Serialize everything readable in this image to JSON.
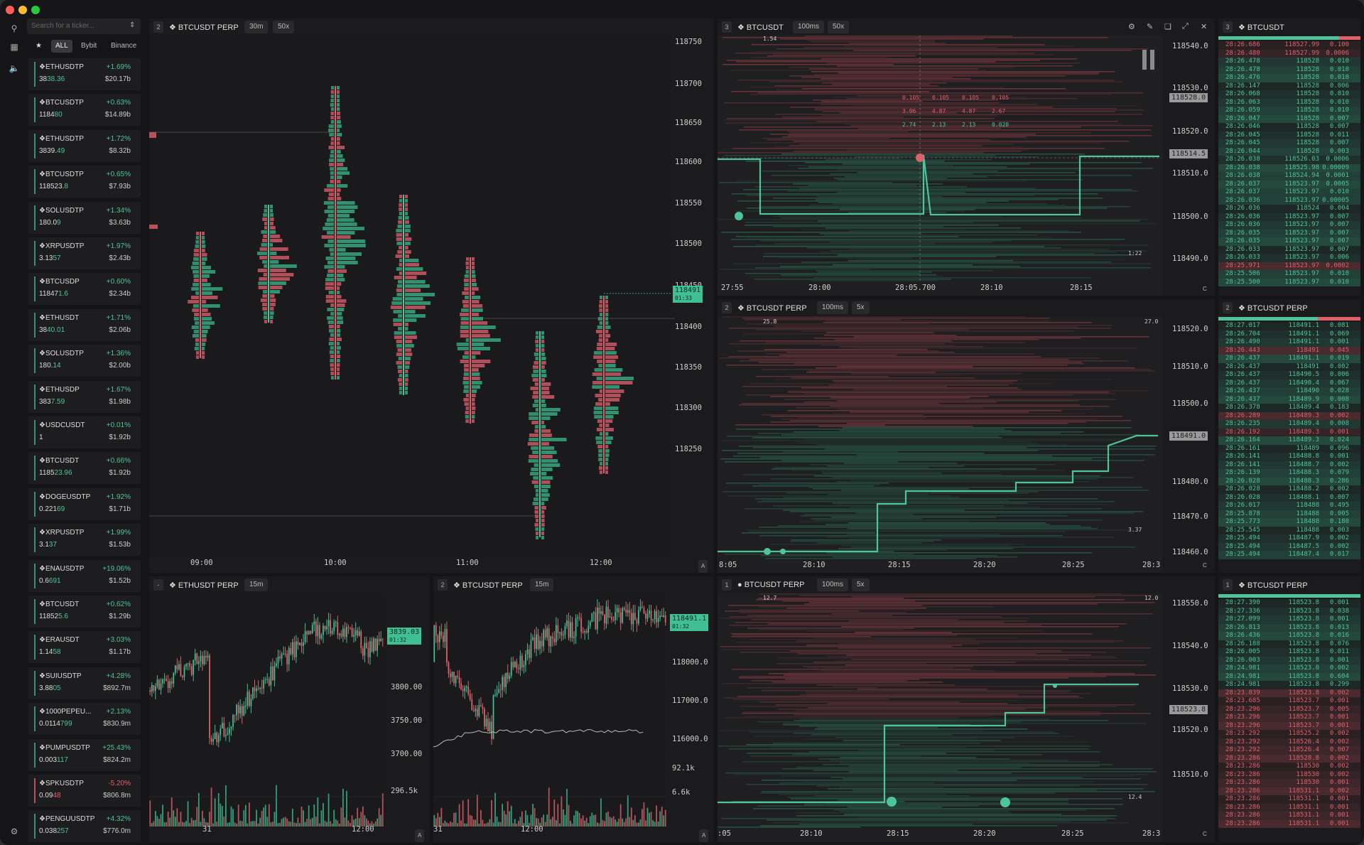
{
  "window": {
    "controls": [
      "close",
      "minimize",
      "zoom"
    ]
  },
  "search": {
    "placeholder": "Search for a ticker..."
  },
  "filters": [
    "ALL",
    "Bybit",
    "Binance"
  ],
  "tickers": [
    {
      "name": "ETHUSDTP",
      "change": "+1.69%",
      "price_a": "38",
      "price_b": "38.36",
      "vol": "$20.17b",
      "up": true
    },
    {
      "name": "BTCUSDTP",
      "change": "+0.63%",
      "price_a": "1184",
      "price_b": "80",
      "vol": "$14.89b",
      "up": true
    },
    {
      "name": "ETHUSDTP",
      "change": "+1.72%",
      "price_a": "3839.",
      "price_b": "49",
      "vol": "$8.32b",
      "up": true
    },
    {
      "name": "BTCUSDTP",
      "change": "+0.65%",
      "price_a": "118523.",
      "price_b": "8",
      "vol": "$7.93b",
      "up": true
    },
    {
      "name": "SOLUSDTP",
      "change": "+1.34%",
      "price_a": "180.0",
      "price_b": "9",
      "vol": "$3.63b",
      "up": true
    },
    {
      "name": "XRPUSDTP",
      "change": "+1.97%",
      "price_a": "3.13",
      "price_b": "57",
      "vol": "$2.43b",
      "up": true
    },
    {
      "name": "BTCUSDP",
      "change": "+0.60%",
      "price_a": "11847",
      "price_b": "1.6",
      "vol": "$2.34b",
      "up": true
    },
    {
      "name": "ETHUSDT",
      "change": "+1.71%",
      "price_a": "38",
      "price_b": "40.01",
      "vol": "$2.06b",
      "up": true
    },
    {
      "name": "SOLUSDTP",
      "change": "+1.36%",
      "price_a": "180.",
      "price_b": "14",
      "vol": "$2.00b",
      "up": true
    },
    {
      "name": "ETHUSDP",
      "change": "+1.67%",
      "price_a": "383",
      "price_b": "7.59",
      "vol": "$1.98b",
      "up": true
    },
    {
      "name": "USDCUSDT",
      "change": "+0.01%",
      "price_a": "1",
      "price_b": "",
      "vol": "$1.92b",
      "up": true
    },
    {
      "name": "BTCUSDT",
      "change": "+0.66%",
      "price_a": "1185",
      "price_b": "23.96",
      "vol": "$1.92b",
      "up": true
    },
    {
      "name": "DOGEUSDTP",
      "change": "+1.92%",
      "price_a": "0.221",
      "price_b": "69",
      "vol": "$1.71b",
      "up": true
    },
    {
      "name": "XRPUSDTP",
      "change": "+1.99%",
      "price_a": "3.1",
      "price_b": "37",
      "vol": "$1.53b",
      "up": true
    },
    {
      "name": "ENAUSDTP",
      "change": "+19.06%",
      "price_a": "0.6",
      "price_b": "691",
      "vol": "$1.52b",
      "up": true
    },
    {
      "name": "BTCUSDT",
      "change": "+0.62%",
      "price_a": "11852",
      "price_b": "5.6",
      "vol": "$1.29b",
      "up": true
    },
    {
      "name": "ERAUSDT",
      "change": "+3.03%",
      "price_a": "1.14",
      "price_b": "58",
      "vol": "$1.17b",
      "up": true
    },
    {
      "name": "SUIUSDTP",
      "change": "+4.28%",
      "price_a": "3.88",
      "price_b": "05",
      "vol": "$892.7m",
      "up": true
    },
    {
      "name": "1000PEPEU...",
      "change": "+2.13%",
      "price_a": "0.0114",
      "price_b": "799",
      "vol": "$830.9m",
      "up": true
    },
    {
      "name": "PUMPUSDTP",
      "change": "+25.43%",
      "price_a": "0.003",
      "price_b": "117",
      "vol": "$824.2m",
      "up": true
    },
    {
      "name": "SPKUSDTP",
      "change": "-5.20%",
      "price_a": "0.09",
      "price_b": "48",
      "vol": "$806.8m",
      "up": false
    },
    {
      "name": "PENGUUSDTP",
      "change": "+4.32%",
      "price_a": "0.038",
      "price_b": "257",
      "vol": "$776.0m",
      "up": true
    }
  ],
  "panes": {
    "footprint": {
      "num": "2",
      "title": "BTCUSDT PERP",
      "tf": "30m",
      "zoom": "50x",
      "yticks": [
        "118750",
        "118700",
        "118650",
        "118600",
        "118550",
        "118500",
        "118450",
        "118400",
        "118350",
        "118300",
        "118250"
      ],
      "xticks": [
        "09:00",
        "10:00",
        "11:00",
        "12:00"
      ],
      "last": "118491",
      "countdown": "01:33",
      "corner": "A"
    },
    "hm1": {
      "num": "3",
      "title": "BTCUSDT",
      "tf": "100ms",
      "zoom": "50x",
      "yticks": [
        "118540.0",
        "118530.0",
        "118520.0",
        "118510.0",
        "118500.0",
        "118490.0"
      ],
      "xticks": [
        "27:55",
        "28:00",
        "28:05.700",
        "28:10",
        "28:15"
      ],
      "crosshair_price": "118528.0",
      "last": "118514.5",
      "max_label": "1.54",
      "min_label": "1:22",
      "corner": "C",
      "tooltip": [
        [
          "0.105",
          "0.105",
          "0.105",
          "0.105"
        ],
        [
          "3.96",
          "4.87",
          "4.87",
          "2.67"
        ],
        [
          "2.74",
          "2.13",
          "2.13",
          "0.020"
        ]
      ]
    },
    "hm2": {
      "num": "2",
      "title": "BTCUSDT PERP",
      "tf": "100ms",
      "zoom": "5x",
      "yticks": [
        "118520.0",
        "118510.0",
        "118500.0",
        "118491.0",
        "118480.0",
        "118470.0",
        "118460.0"
      ],
      "xticks": [
        "8:05",
        "28:10",
        "28:15",
        "28:20",
        "28:25",
        "28:3"
      ],
      "top_left": "25.8",
      "top_right": "27.0",
      "right_mid": "3.37",
      "corner": "C"
    },
    "hm3": {
      "num": "1",
      "title": "BTCUSDT PERP",
      "tf": "100ms",
      "zoom": "5x",
      "yticks": [
        "118550.0",
        "118540.0",
        "118530.0",
        "118523.8",
        "118520.0",
        "118510.0"
      ],
      "xticks": [
        ":05",
        "28:10",
        "28:15",
        "28:20",
        "28:25",
        "28:3"
      ],
      "top_left": "12.7",
      "top_right": "12.0",
      "right_low": "12.4",
      "corner": "C"
    },
    "eth": {
      "num": "-",
      "title": "ETHUSDT PERP",
      "tf": "15m",
      "yticks": [
        "3800.00",
        "3750.00",
        "3700.00"
      ],
      "xticks": [
        "31",
        "12:00"
      ],
      "last": "3839.03",
      "countdown": "01:32",
      "vol_label": "296.5k",
      "corner": "A"
    },
    "btc15": {
      "num": "2",
      "title": "BTCUSDT PERP",
      "tf": "15m",
      "yticks": [
        "119000.0",
        "118000.0",
        "117000.0",
        "116000.0"
      ],
      "xticks": [
        "31",
        "12:00"
      ],
      "last": "118491.1",
      "countdown": "01:32",
      "oi_label": "92.1k",
      "vol_label": "6.6k",
      "corner": "A"
    }
  },
  "trades1": {
    "num": "3",
    "title": "BTCUSDT",
    "rows": [
      [
        "28:26.686",
        "118527.99",
        "0.100",
        "s"
      ],
      [
        "28:26.480",
        "118527.99",
        "0.0006",
        "s"
      ],
      [
        "28:26.478",
        "118528",
        "0.010",
        "b"
      ],
      [
        "28:26.478",
        "118528",
        "0.010",
        "b"
      ],
      [
        "28:26.476",
        "118528",
        "0.010",
        "b"
      ],
      [
        "28:26.147",
        "118528",
        "0.006",
        "b"
      ],
      [
        "28:26.068",
        "118528",
        "0.010",
        "b"
      ],
      [
        "28:26.063",
        "118528",
        "0.010",
        "b"
      ],
      [
        "28:26.059",
        "118528",
        "0.010",
        "b"
      ],
      [
        "28:26.047",
        "118528",
        "0.007",
        "b"
      ],
      [
        "28:26.046",
        "118528",
        "0.007",
        "b"
      ],
      [
        "28:26.045",
        "118528",
        "0.011",
        "b"
      ],
      [
        "28:26.045",
        "118528",
        "0.007",
        "b"
      ],
      [
        "28:26.044",
        "118528",
        "0.003",
        "b"
      ],
      [
        "28:26.038",
        "118526.03",
        "0.0006",
        "b"
      ],
      [
        "28:26.038",
        "118525.98",
        "0.00009",
        "b"
      ],
      [
        "28:26.038",
        "118524.94",
        "0.0001",
        "b"
      ],
      [
        "28:26.037",
        "118523.97",
        "0.0005",
        "b"
      ],
      [
        "28:26.037",
        "118523.97",
        "0.010",
        "b"
      ],
      [
        "28:26.036",
        "118523.97",
        "0.00005",
        "b"
      ],
      [
        "28:26.036",
        "118524",
        "0.004",
        "b"
      ],
      [
        "28:26.036",
        "118523.97",
        "0.007",
        "b"
      ],
      [
        "28:26.036",
        "118523.97",
        "0.007",
        "b"
      ],
      [
        "28:26.035",
        "118523.97",
        "0.007",
        "b"
      ],
      [
        "28:26.035",
        "118523.97",
        "0.007",
        "b"
      ],
      [
        "28:26.033",
        "118523.97",
        "0.007",
        "b"
      ],
      [
        "28:26.033",
        "118523.97",
        "0.006",
        "b"
      ],
      [
        "28:25.971",
        "118523.97",
        "0.0002",
        "s"
      ],
      [
        "28:25.506",
        "118523.97",
        "0.010",
        "b"
      ],
      [
        "28:25.500",
        "118523.97",
        "0.010",
        "b"
      ]
    ]
  },
  "trades2": {
    "num": "2",
    "title": "BTCUSDT PERP",
    "rows": [
      [
        "28:27.017",
        "118491.1",
        "0.081",
        "b"
      ],
      [
        "28:26.704",
        "118491.1",
        "0.069",
        "b"
      ],
      [
        "28:26.490",
        "118491.1",
        "0.001",
        "b"
      ],
      [
        "28:26.443",
        "118491",
        "0.045",
        "s"
      ],
      [
        "28:26.437",
        "118491.1",
        "0.019",
        "b"
      ],
      [
        "28:26.437",
        "118491",
        "0.002",
        "b"
      ],
      [
        "28:26.437",
        "118490.5",
        "0.006",
        "b"
      ],
      [
        "28:26.437",
        "118490.4",
        "0.067",
        "b"
      ],
      [
        "28:26.437",
        "118490",
        "0.028",
        "b"
      ],
      [
        "28:26.437",
        "118489.9",
        "0.008",
        "b"
      ],
      [
        "28:26.378",
        "118489.4",
        "0.183",
        "b"
      ],
      [
        "28:26.289",
        "118489.3",
        "0.002",
        "s"
      ],
      [
        "28:26.235",
        "118489.4",
        "0.008",
        "b"
      ],
      [
        "28:26.192",
        "118489.3",
        "0.001",
        "s"
      ],
      [
        "28:26.164",
        "118489.3",
        "0.024",
        "b"
      ],
      [
        "28:26.161",
        "118489",
        "0.096",
        "b"
      ],
      [
        "28:26.141",
        "118488.8",
        "0.001",
        "b"
      ],
      [
        "28:26.141",
        "118488.7",
        "0.002",
        "b"
      ],
      [
        "28:26.139",
        "118488.3",
        "0.079",
        "b"
      ],
      [
        "28:26.028",
        "118488.3",
        "0.286",
        "b"
      ],
      [
        "28:26.028",
        "118488.2",
        "0.002",
        "b"
      ],
      [
        "28:26.028",
        "118488.1",
        "0.007",
        "b"
      ],
      [
        "28:26.017",
        "118488",
        "0.495",
        "b"
      ],
      [
        "28:25.878",
        "118488",
        "0.005",
        "b"
      ],
      [
        "28:25.773",
        "118488",
        "0.180",
        "b"
      ],
      [
        "28:25.545",
        "118488",
        "0.003",
        "b"
      ],
      [
        "28:25.494",
        "118487.9",
        "0.002",
        "b"
      ],
      [
        "28:25.494",
        "118487.5",
        "0.002",
        "b"
      ],
      [
        "28:25.494",
        "118487.4",
        "0.017",
        "b"
      ]
    ]
  },
  "trades3": {
    "num": "1",
    "title": "BTCUSDT PERP",
    "rows": [
      [
        "28:27.390",
        "118523.8",
        "0.001",
        "b"
      ],
      [
        "28:27.336",
        "118523.8",
        "0.038",
        "b"
      ],
      [
        "28:27.099",
        "118523.8",
        "0.001",
        "b"
      ],
      [
        "28:26.813",
        "118523.8",
        "0.013",
        "b"
      ],
      [
        "28:26.436",
        "118523.8",
        "0.016",
        "b"
      ],
      [
        "28:26.188",
        "118523.8",
        "0.076",
        "b"
      ],
      [
        "28:26.005",
        "118523.8",
        "0.011",
        "b"
      ],
      [
        "28:26.003",
        "118523.8",
        "0.001",
        "b"
      ],
      [
        "28:24.981",
        "118523.8",
        "0.002",
        "b"
      ],
      [
        "28:24.981",
        "118523.8",
        "0.604",
        "b"
      ],
      [
        "28:24.981",
        "118523.8",
        "0.299",
        "b"
      ],
      [
        "28:23.839",
        "118523.8",
        "0.002",
        "s"
      ],
      [
        "28:23.685",
        "118523.7",
        "0.001",
        "s"
      ],
      [
        "28:23.296",
        "118523.7",
        "0.005",
        "s"
      ],
      [
        "28:23.296",
        "118523.7",
        "0.001",
        "s"
      ],
      [
        "28:23.296",
        "118523.7",
        "0.001",
        "s"
      ],
      [
        "28:23.292",
        "118525.2",
        "0.002",
        "s"
      ],
      [
        "28:23.292",
        "118526.4",
        "0.002",
        "s"
      ],
      [
        "28:23.292",
        "118526.4",
        "0.007",
        "s"
      ],
      [
        "28:23.286",
        "118528.8",
        "0.002",
        "s"
      ],
      [
        "28:23.286",
        "118530",
        "0.002",
        "s"
      ],
      [
        "28:23.286",
        "118530",
        "0.002",
        "s"
      ],
      [
        "28:23.286",
        "118530",
        "0.001",
        "s"
      ],
      [
        "28:23.286",
        "118531.1",
        "0.002",
        "s"
      ],
      [
        "28:23.286",
        "118531.1",
        "0.001",
        "s"
      ],
      [
        "28:23.286",
        "118531.1",
        "0.001",
        "s"
      ],
      [
        "28:23.286",
        "118531.1",
        "0.001",
        "s"
      ],
      [
        "28:23.286",
        "118531.1",
        "0.001",
        "s"
      ]
    ]
  },
  "colors": {
    "buy": "#4fc49a",
    "sell": "#e0616a",
    "bg": "#151517",
    "panel": "#1b1b1d"
  }
}
